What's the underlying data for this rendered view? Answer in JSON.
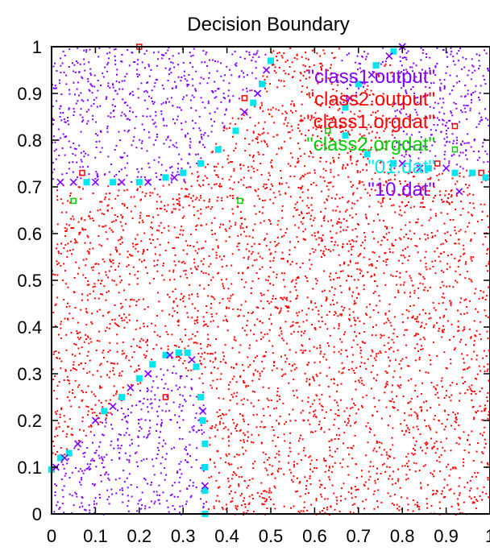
{
  "chart_data": {
    "type": "scatter",
    "title": "Decision Boundary",
    "xlabel": "",
    "ylabel": "",
    "xlim": [
      0,
      1
    ],
    "ylim": [
      0,
      1
    ],
    "x_ticks": [
      "0",
      "0.1",
      "0.2",
      "0.3",
      "0.4",
      "0.5",
      "0.6",
      "0.7",
      "0.8",
      "0.9",
      "1"
    ],
    "y_ticks": [
      "0",
      "0.1",
      "0.2",
      "0.3",
      "0.4",
      "0.5",
      "0.6",
      "0.7",
      "0.8",
      "0.9",
      "1"
    ],
    "legend_position": "top-right",
    "series": [
      {
        "name": "\"class1.output\"",
        "color": "#8000ff",
        "marker": "dot",
        "description_region": "class 1 decision region: top band above boundary and lower-left lobe"
      },
      {
        "name": "\"class2.output\"",
        "color": "#ff0000",
        "marker": "dot",
        "description_region": "class 2 decision region: remainder of plane"
      },
      {
        "name": "\"class1.orgdat\"",
        "color": "#ff0000",
        "marker": "open-square",
        "points": [
          [
            0.2,
            1.0
          ],
          [
            0.44,
            0.89
          ],
          [
            0.07,
            0.73
          ],
          [
            0.26,
            0.25
          ],
          [
            0.63,
            0.82
          ],
          [
            0.92,
            0.83
          ],
          [
            0.98,
            0.73
          ],
          [
            0.88,
            0.75
          ]
        ]
      },
      {
        "name": "\"class2.orgdat\"",
        "color": "#00cc00",
        "marker": "open-square",
        "points": [
          [
            0.05,
            0.67
          ],
          [
            0.43,
            0.67
          ],
          [
            0.63,
            0.82
          ],
          [
            0.92,
            0.78
          ]
        ]
      },
      {
        "name": "\"01.dat\"",
        "color": "#00e5ee",
        "marker": "filled-square",
        "points": [
          [
            0.0,
            0.095
          ],
          [
            0.02,
            0.12
          ],
          [
            0.04,
            0.13
          ],
          [
            0.12,
            0.22
          ],
          [
            0.16,
            0.25
          ],
          [
            0.2,
            0.29
          ],
          [
            0.23,
            0.32
          ],
          [
            0.26,
            0.34
          ],
          [
            0.29,
            0.345
          ],
          [
            0.31,
            0.345
          ],
          [
            0.33,
            0.315
          ],
          [
            0.34,
            0.25
          ],
          [
            0.345,
            0.2
          ],
          [
            0.35,
            0.15
          ],
          [
            0.35,
            0.1
          ],
          [
            0.35,
            0.05
          ],
          [
            0.35,
            0.0
          ],
          [
            0.08,
            0.71
          ],
          [
            0.14,
            0.71
          ],
          [
            0.2,
            0.71
          ],
          [
            0.26,
            0.72
          ],
          [
            0.3,
            0.73
          ],
          [
            0.34,
            0.75
          ],
          [
            0.38,
            0.78
          ],
          [
            0.42,
            0.82
          ],
          [
            0.46,
            0.88
          ],
          [
            0.48,
            0.92
          ],
          [
            0.5,
            0.97
          ],
          [
            0.67,
            0.87
          ],
          [
            0.7,
            0.92
          ],
          [
            0.74,
            0.96
          ],
          [
            0.78,
            0.99
          ],
          [
            0.67,
            0.81
          ],
          [
            0.72,
            0.77
          ],
          [
            0.78,
            0.75
          ],
          [
            0.86,
            0.74
          ],
          [
            0.92,
            0.73
          ],
          [
            0.96,
            0.73
          ],
          [
            0.99,
            0.72
          ]
        ]
      },
      {
        "name": "\"10.dat\"",
        "color": "#8000ff",
        "marker": "cross",
        "points": [
          [
            0.01,
            0.1
          ],
          [
            0.03,
            0.12
          ],
          [
            0.06,
            0.15
          ],
          [
            0.1,
            0.2
          ],
          [
            0.14,
            0.23
          ],
          [
            0.18,
            0.27
          ],
          [
            0.22,
            0.3
          ],
          [
            0.27,
            0.34
          ],
          [
            0.32,
            0.33
          ],
          [
            0.345,
            0.22
          ],
          [
            0.35,
            0.06
          ],
          [
            0.02,
            0.71
          ],
          [
            0.05,
            0.71
          ],
          [
            0.1,
            0.71
          ],
          [
            0.16,
            0.71
          ],
          [
            0.22,
            0.71
          ],
          [
            0.28,
            0.72
          ],
          [
            0.44,
            0.86
          ],
          [
            0.47,
            0.9
          ],
          [
            0.49,
            0.95
          ],
          [
            0.68,
            0.89
          ],
          [
            0.73,
            0.94
          ],
          [
            0.77,
            0.98
          ],
          [
            0.8,
            1.0
          ],
          [
            0.8,
            0.75
          ],
          [
            0.84,
            0.74
          ],
          [
            0.9,
            0.74
          ],
          [
            0.93,
            0.69
          ]
        ]
      }
    ]
  }
}
